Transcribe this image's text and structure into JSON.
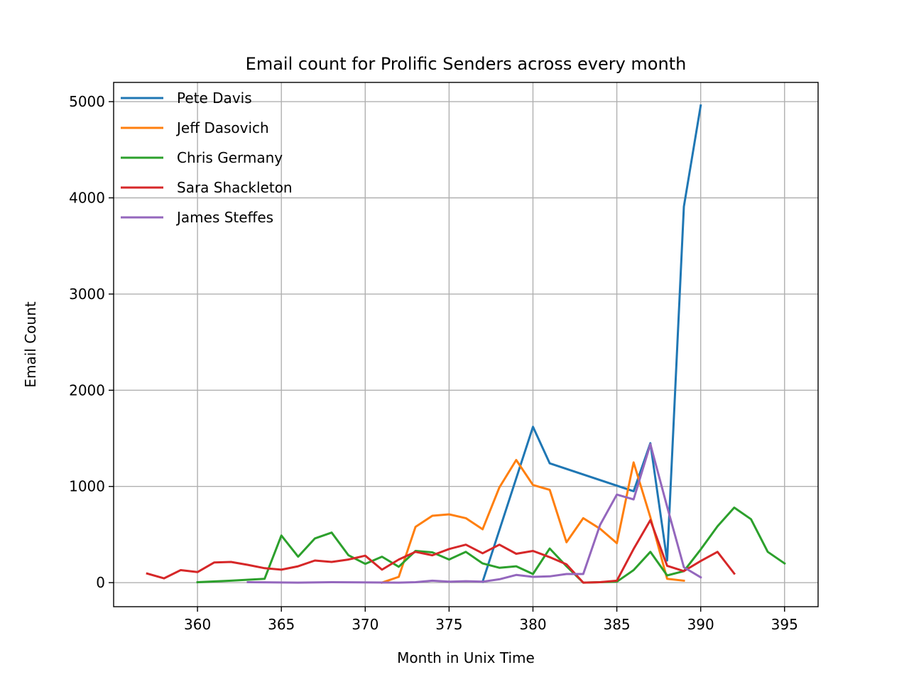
{
  "chart_data": {
    "type": "line",
    "title": "Email count for Prolific Senders across every month",
    "xlabel": "Month in Unix Time",
    "ylabel": "Email Count",
    "xlim": [
      355,
      397
    ],
    "ylim": [
      -250,
      5200
    ],
    "xticks": [
      360,
      365,
      370,
      375,
      380,
      385,
      390,
      395
    ],
    "yticks": [
      0,
      1000,
      2000,
      3000,
      4000,
      5000
    ],
    "grid": true,
    "legend_position": "top-left",
    "series": [
      {
        "name": "Pete Davis",
        "color": "#1f77b4",
        "points": [
          [
            377,
            10
          ],
          [
            380,
            1620
          ],
          [
            381,
            1240
          ],
          [
            386,
            950
          ],
          [
            387,
            1450
          ],
          [
            388,
            230
          ],
          [
            389,
            3910
          ],
          [
            390,
            4960
          ]
        ]
      },
      {
        "name": "Jeff Dasovich",
        "color": "#ff7f0e",
        "points": [
          [
            371,
            0
          ],
          [
            372,
            60
          ],
          [
            373,
            580
          ],
          [
            374,
            695
          ],
          [
            375,
            710
          ],
          [
            376,
            670
          ],
          [
            377,
            555
          ],
          [
            378,
            990
          ],
          [
            379,
            1275
          ],
          [
            380,
            1015
          ],
          [
            381,
            965
          ],
          [
            382,
            420
          ],
          [
            383,
            670
          ],
          [
            384,
            560
          ],
          [
            385,
            410
          ],
          [
            386,
            1250
          ],
          [
            387,
            680
          ],
          [
            388,
            40
          ],
          [
            389,
            20
          ]
        ]
      },
      {
        "name": "Chris Germany",
        "color": "#2ca02c",
        "points": [
          [
            360,
            5
          ],
          [
            362,
            20
          ],
          [
            364,
            40
          ],
          [
            365,
            490
          ],
          [
            366,
            270
          ],
          [
            367,
            460
          ],
          [
            368,
            520
          ],
          [
            369,
            285
          ],
          [
            370,
            195
          ],
          [
            371,
            270
          ],
          [
            372,
            165
          ],
          [
            373,
            330
          ],
          [
            374,
            315
          ],
          [
            375,
            240
          ],
          [
            376,
            320
          ],
          [
            377,
            200
          ],
          [
            378,
            155
          ],
          [
            379,
            170
          ],
          [
            380,
            90
          ],
          [
            381,
            355
          ],
          [
            382,
            170
          ],
          [
            383,
            0
          ],
          [
            384,
            5
          ],
          [
            385,
            10
          ],
          [
            386,
            130
          ],
          [
            387,
            320
          ],
          [
            388,
            75
          ],
          [
            389,
            120
          ],
          [
            390,
            345
          ],
          [
            391,
            585
          ],
          [
            392,
            780
          ],
          [
            393,
            660
          ],
          [
            394,
            320
          ],
          [
            395,
            200
          ]
        ]
      },
      {
        "name": "Sara Shackleton",
        "color": "#d62728",
        "points": [
          [
            357,
            95
          ],
          [
            358,
            45
          ],
          [
            359,
            130
          ],
          [
            360,
            110
          ],
          [
            361,
            210
          ],
          [
            362,
            215
          ],
          [
            363,
            185
          ],
          [
            364,
            150
          ],
          [
            365,
            135
          ],
          [
            366,
            170
          ],
          [
            367,
            230
          ],
          [
            368,
            215
          ],
          [
            369,
            240
          ],
          [
            370,
            280
          ],
          [
            371,
            135
          ],
          [
            372,
            240
          ],
          [
            373,
            320
          ],
          [
            374,
            285
          ],
          [
            375,
            350
          ],
          [
            376,
            395
          ],
          [
            377,
            305
          ],
          [
            378,
            395
          ],
          [
            379,
            300
          ],
          [
            380,
            330
          ],
          [
            381,
            265
          ],
          [
            382,
            190
          ],
          [
            383,
            0
          ],
          [
            384,
            5
          ],
          [
            385,
            20
          ],
          [
            386,
            350
          ],
          [
            387,
            650
          ],
          [
            388,
            175
          ],
          [
            389,
            120
          ],
          [
            390,
            225
          ],
          [
            391,
            320
          ],
          [
            392,
            95
          ]
        ]
      },
      {
        "name": "James Steffes",
        "color": "#9467bd",
        "points": [
          [
            363,
            5
          ],
          [
            366,
            0
          ],
          [
            368,
            5
          ],
          [
            372,
            0
          ],
          [
            373,
            5
          ],
          [
            374,
            20
          ],
          [
            375,
            10
          ],
          [
            376,
            15
          ],
          [
            377,
            10
          ],
          [
            378,
            35
          ],
          [
            379,
            80
          ],
          [
            380,
            60
          ],
          [
            381,
            65
          ],
          [
            382,
            90
          ],
          [
            383,
            90
          ],
          [
            384,
            600
          ],
          [
            385,
            915
          ],
          [
            386,
            865
          ],
          [
            387,
            1440
          ],
          [
            388,
            790
          ],
          [
            389,
            160
          ],
          [
            390,
            55
          ]
        ]
      }
    ]
  }
}
